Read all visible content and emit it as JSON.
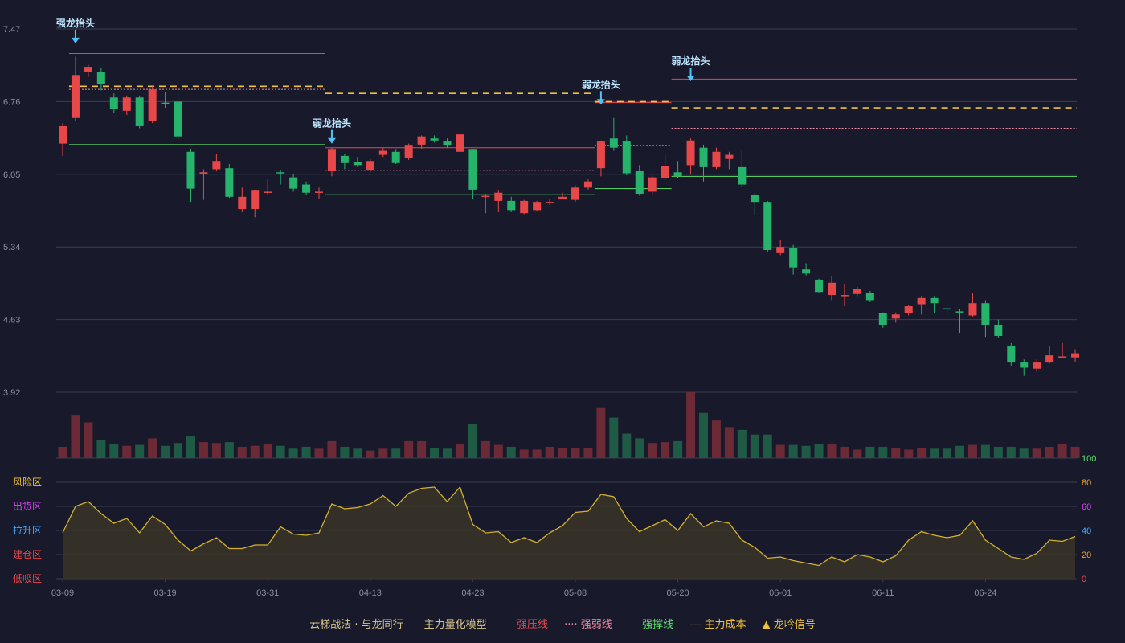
{
  "chart_data": [
    {
      "type": "candlestick",
      "ylim": [
        3.92,
        7.47
      ],
      "yticks": [
        "7.47",
        "6.76",
        "6.05",
        "5.34",
        "4.63",
        "3.92"
      ],
      "xticks": [
        {
          "i": 0,
          "label": "03-09"
        },
        {
          "i": 8,
          "label": "03-19"
        },
        {
          "i": 16,
          "label": "03-31"
        },
        {
          "i": 24,
          "label": "04-13"
        },
        {
          "i": 32,
          "label": "04-23"
        },
        {
          "i": 40,
          "label": "05-08"
        },
        {
          "i": 48,
          "label": "05-20"
        },
        {
          "i": 56,
          "label": "06-01"
        },
        {
          "i": 64,
          "label": "06-11"
        },
        {
          "i": 72,
          "label": "06-24"
        }
      ],
      "ohlc": [
        [
          6.35,
          6.52,
          6.23,
          6.55
        ],
        [
          6.6,
          7.02,
          6.57,
          7.2
        ],
        [
          7.05,
          7.1,
          7.0,
          7.12
        ],
        [
          7.05,
          6.93,
          6.87,
          7.09
        ],
        [
          6.8,
          6.69,
          6.65,
          6.84
        ],
        [
          6.67,
          6.8,
          6.63,
          6.82
        ],
        [
          6.8,
          6.52,
          6.5,
          6.82
        ],
        [
          6.57,
          6.88,
          6.55,
          6.91
        ],
        [
          6.75,
          6.74,
          6.7,
          6.85
        ],
        [
          6.76,
          6.42,
          6.4,
          6.85
        ],
        [
          6.27,
          5.91,
          5.78,
          6.3
        ],
        [
          6.05,
          6.07,
          5.8,
          6.1
        ],
        [
          6.1,
          6.18,
          6.08,
          6.25
        ],
        [
          6.11,
          5.83,
          5.82,
          6.15
        ],
        [
          5.71,
          5.83,
          5.68,
          5.92
        ],
        [
          5.71,
          5.89,
          5.63,
          5.9
        ],
        [
          5.87,
          5.88,
          5.85,
          6.0
        ],
        [
          6.07,
          6.06,
          5.95,
          6.09
        ],
        [
          6.02,
          5.91,
          5.88,
          6.05
        ],
        [
          5.95,
          5.87,
          5.85,
          5.98
        ],
        [
          5.87,
          5.88,
          5.81,
          5.92
        ],
        [
          6.08,
          6.29,
          6.03,
          6.31
        ],
        [
          6.23,
          6.16,
          6.1,
          6.25
        ],
        [
          6.17,
          6.14,
          6.12,
          6.22
        ],
        [
          6.09,
          6.18,
          6.07,
          6.2
        ],
        [
          6.24,
          6.28,
          6.22,
          6.31
        ],
        [
          6.27,
          6.16,
          6.15,
          6.29
        ],
        [
          6.21,
          6.33,
          6.19,
          6.35
        ],
        [
          6.34,
          6.42,
          6.3,
          6.43
        ],
        [
          6.4,
          6.38,
          6.36,
          6.43
        ],
        [
          6.37,
          6.33,
          6.31,
          6.4
        ],
        [
          6.27,
          6.44,
          6.26,
          6.46
        ],
        [
          6.29,
          5.9,
          5.81,
          6.3
        ],
        [
          5.84,
          5.84,
          5.67,
          5.86
        ],
        [
          5.79,
          5.87,
          5.68,
          5.89
        ],
        [
          5.79,
          5.7,
          5.68,
          5.83
        ],
        [
          5.67,
          5.79,
          5.66,
          5.8
        ],
        [
          5.7,
          5.78,
          5.69,
          5.79
        ],
        [
          5.77,
          5.78,
          5.75,
          5.81
        ],
        [
          5.81,
          5.83,
          5.81,
          5.87
        ],
        [
          5.8,
          5.92,
          5.78,
          5.94
        ],
        [
          5.92,
          5.98,
          5.9,
          6.0
        ],
        [
          6.11,
          6.37,
          6.03,
          6.38
        ],
        [
          6.4,
          6.31,
          6.28,
          6.6
        ],
        [
          6.37,
          6.06,
          6.04,
          6.43
        ],
        [
          6.08,
          5.86,
          5.84,
          6.14
        ],
        [
          5.88,
          6.02,
          5.85,
          6.04
        ],
        [
          6.01,
          6.13,
          6.0,
          6.25
        ],
        [
          6.07,
          6.03,
          6.01,
          6.18
        ],
        [
          6.14,
          6.38,
          6.05,
          6.4
        ],
        [
          6.31,
          6.12,
          5.98,
          6.34
        ],
        [
          6.12,
          6.27,
          6.1,
          6.31
        ],
        [
          6.2,
          6.24,
          6.1,
          6.27
        ],
        [
          6.12,
          5.95,
          5.92,
          6.28
        ],
        [
          5.85,
          5.78,
          5.65,
          5.87
        ],
        [
          5.78,
          5.31,
          5.29,
          5.79
        ],
        [
          5.28,
          5.34,
          5.26,
          5.41
        ],
        [
          5.33,
          5.14,
          5.07,
          5.36
        ],
        [
          5.12,
          5.08,
          5.06,
          5.18
        ],
        [
          5.02,
          4.9,
          4.89,
          5.03
        ],
        [
          4.87,
          4.99,
          4.82,
          5.05
        ],
        [
          4.87,
          4.87,
          4.76,
          4.98
        ],
        [
          4.88,
          4.93,
          4.86,
          4.95
        ],
        [
          4.89,
          4.82,
          4.8,
          4.91
        ],
        [
          4.69,
          4.58,
          4.55,
          4.7
        ],
        [
          4.64,
          4.68,
          4.6,
          4.7
        ],
        [
          4.69,
          4.76,
          4.67,
          4.77
        ],
        [
          4.78,
          4.84,
          4.68,
          4.86
        ],
        [
          4.84,
          4.79,
          4.69,
          4.86
        ],
        [
          4.74,
          4.73,
          4.66,
          4.78
        ],
        [
          4.71,
          4.7,
          4.5,
          4.73
        ],
        [
          4.67,
          4.79,
          4.66,
          4.89
        ],
        [
          4.79,
          4.58,
          4.46,
          4.82
        ],
        [
          4.58,
          4.47,
          4.45,
          4.63
        ],
        [
          4.37,
          4.21,
          4.18,
          4.4
        ],
        [
          4.21,
          4.16,
          4.08,
          4.24
        ],
        [
          4.15,
          4.21,
          4.12,
          4.24
        ],
        [
          4.21,
          4.28,
          4.2,
          4.37
        ],
        [
          4.26,
          4.27,
          4.25,
          4.4
        ],
        [
          4.26,
          4.3,
          4.22,
          4.34
        ]
      ],
      "volume": [
        12,
        46,
        38,
        19,
        15,
        13,
        14,
        21,
        13,
        16,
        23,
        17,
        16,
        17,
        12,
        13,
        15,
        13,
        10,
        12,
        10,
        18,
        12,
        10,
        8,
        10,
        10,
        18,
        18,
        11,
        10,
        15,
        36,
        18,
        14,
        12,
        9,
        9,
        12,
        11,
        11,
        11,
        54,
        43,
        26,
        21,
        16,
        17,
        18,
        70,
        48,
        40,
        33,
        30,
        25,
        25,
        14,
        14,
        13,
        15,
        15,
        12,
        9,
        12,
        12,
        11,
        9,
        11,
        10,
        10,
        13,
        14,
        14,
        12,
        12,
        10,
        10,
        12,
        15,
        12
      ],
      "volume_colors": {
        "up": "#6b2a35",
        "down": "#1f5a45"
      },
      "lines": [
        {
          "kind": "强压线",
          "y": 7.23,
          "from": 1,
          "to": 20
        },
        {
          "kind": "强压线",
          "y": 6.31,
          "from": 21,
          "to": 41
        },
        {
          "kind": "强压线",
          "y": 6.75,
          "from": 42,
          "to": 47
        },
        {
          "kind": "强压线",
          "y": 6.98,
          "from": 48,
          "to": 79
        },
        {
          "kind": "强弱线",
          "y": 6.88,
          "from": 1,
          "to": 20
        },
        {
          "kind": "强弱线",
          "y": 6.09,
          "from": 21,
          "to": 41
        },
        {
          "kind": "强弱线",
          "y": 6.33,
          "from": 42,
          "to": 47
        },
        {
          "kind": "强弱线",
          "y": 6.5,
          "from": 48,
          "to": 79
        },
        {
          "kind": "强撑线",
          "y": 6.34,
          "from": 1,
          "to": 20
        },
        {
          "kind": "强撑线",
          "y": 5.85,
          "from": 21,
          "to": 41
        },
        {
          "kind": "强撑线",
          "y": 5.91,
          "from": 42,
          "to": 47
        },
        {
          "kind": "强撑线",
          "y": 6.03,
          "from": 48,
          "to": 79
        },
        {
          "kind": "主力成本",
          "y": 6.91,
          "from": 1,
          "to": 20
        },
        {
          "kind": "主力成本",
          "y": 6.84,
          "from": 21,
          "to": 41
        },
        {
          "kind": "主力成本",
          "y": 6.76,
          "from": 42,
          "to": 47
        },
        {
          "kind": "主力成本",
          "y": 6.7,
          "from": 48,
          "to": 79
        }
      ],
      "signals": [
        {
          "i": 1,
          "label": "强龙抬头",
          "price": 7.4
        },
        {
          "i": 21,
          "label": "弱龙抬头",
          "price": 6.42
        },
        {
          "i": 42,
          "label": "弱龙抬头",
          "price": 6.8
        },
        {
          "i": 49,
          "label": "弱龙抬头",
          "price": 7.03
        }
      ]
    },
    {
      "type": "area",
      "ylim": [
        0,
        100
      ],
      "yticks": [
        "100",
        "80",
        "60",
        "40",
        "20",
        "0"
      ],
      "zones": [
        "风险区",
        "出货区",
        "拉升区",
        "建仓区",
        "低吸区"
      ],
      "values": [
        38,
        60,
        64,
        54,
        46,
        50,
        38,
        52,
        45,
        32,
        23,
        29,
        34,
        25,
        25,
        28,
        28,
        43,
        37,
        36,
        38,
        62,
        58,
        59,
        62,
        69,
        60,
        71,
        75,
        76,
        64,
        76,
        45,
        38,
        39,
        30,
        34,
        30,
        38,
        44,
        55,
        56,
        70,
        68,
        50,
        39,
        44,
        49,
        40,
        54,
        43,
        48,
        46,
        32,
        26,
        17,
        18,
        15,
        13,
        11,
        18,
        14,
        20,
        18,
        14,
        19,
        32,
        39,
        36,
        34,
        36,
        48,
        32,
        25,
        18,
        16,
        21,
        32,
        31,
        35
      ]
    }
  ],
  "legend": {
    "title": "云梯战法 · 与龙同行——主力量化模型",
    "items": [
      {
        "symbol": "—",
        "label": "强压线",
        "color": "#e8474a"
      },
      {
        "symbol": "····",
        "label": "强弱线",
        "color": "#f08aa0"
      },
      {
        "symbol": "—",
        "label": "强撑线",
        "color": "#5ee06a"
      },
      {
        "symbol": "---",
        "label": "主力成本",
        "color": "#f0c23a"
      },
      {
        "symbol": "▲",
        "label": "龙吟信号",
        "color": "#f0c23a"
      }
    ]
  },
  "colors": {
    "up": "#e8474a",
    "down": "#26b36b",
    "grid": "#3a3d50",
    "signal": "#4fc3f7",
    "signal_text": "#bfe6ff",
    "zone_colors": [
      "#f0c23a",
      "#e040fb",
      "#4aa8ff",
      "#ef4444",
      "#ef4444"
    ],
    "osc_tick_colors": [
      "#5ee06a",
      "#f0a030",
      "#e040fb",
      "#4aa8ff",
      "#f0a030",
      "#ef4444"
    ],
    "osc_line": "#d4b12c",
    "osc_fill": "#3a3528"
  }
}
